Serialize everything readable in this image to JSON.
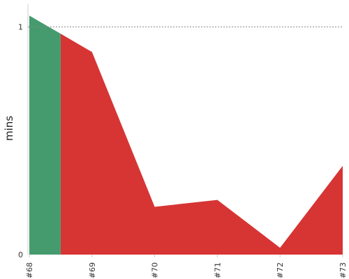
{
  "chart_data": {
    "type": "area",
    "xlabel": "",
    "ylabel": "mins",
    "categories": [
      "#68",
      "#69",
      "#70",
      "#71",
      "#72",
      "#73"
    ],
    "values": [
      1.05,
      0.89,
      0.21,
      0.24,
      0.03,
      0.39
    ],
    "segment_colors": {
      "success": "#459b6e",
      "failure": "#d63534"
    },
    "success_extent": [
      0,
      0.5
    ],
    "ylim": [
      0,
      1.1
    ],
    "yticks": [
      0,
      1
    ],
    "reference_line": {
      "value": 1,
      "style": "dotted",
      "color": "#888888"
    },
    "grid": false,
    "legend": "none"
  }
}
